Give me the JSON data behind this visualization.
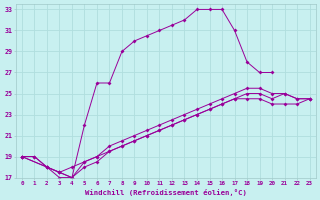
{
  "xlabel": "Windchill (Refroidissement éolien,°C)",
  "xlim_min": -0.5,
  "xlim_max": 23.5,
  "ylim_min": 17,
  "ylim_max": 33.5,
  "xticks": [
    0,
    1,
    2,
    3,
    4,
    5,
    6,
    7,
    8,
    9,
    10,
    11,
    12,
    13,
    14,
    15,
    16,
    17,
    18,
    19,
    20,
    21,
    22,
    23
  ],
  "yticks": [
    17,
    19,
    21,
    23,
    25,
    27,
    29,
    31,
    33
  ],
  "bg_color": "#c8f0f0",
  "line_color": "#990099",
  "grid_color": "#b0dede",
  "line1_x": [
    0,
    1,
    2,
    3,
    4,
    5,
    6,
    7,
    8,
    9,
    10,
    11,
    12,
    13,
    14,
    15,
    16,
    17,
    18,
    19,
    20
  ],
  "line1_y": [
    19,
    19,
    18,
    17,
    17,
    22,
    26,
    26,
    29,
    30,
    30.5,
    31,
    31.5,
    32,
    33,
    33,
    33,
    31,
    28,
    27,
    27
  ],
  "line2_x": [
    0,
    1,
    2,
    3,
    4,
    5,
    6,
    7,
    8,
    9,
    10,
    11,
    12,
    13,
    14,
    15,
    16,
    17,
    18,
    19,
    20,
    21,
    22,
    23
  ],
  "line2_y": [
    19,
    19,
    18,
    17.5,
    18,
    18.5,
    19,
    19.5,
    20,
    20.5,
    21,
    21.5,
    22,
    22.5,
    23,
    23.5,
    24,
    24.5,
    24.5,
    24.5,
    24,
    24,
    24,
    24.5
  ],
  "line3_x": [
    0,
    2,
    3,
    4,
    5,
    6,
    7,
    8,
    9,
    10,
    11,
    12,
    13,
    14,
    15,
    16,
    17,
    18,
    19,
    20,
    21,
    22,
    23
  ],
  "line3_y": [
    19,
    18,
    17.5,
    17,
    18,
    18.5,
    19.5,
    20,
    20.5,
    21,
    21.5,
    22,
    22.5,
    23,
    23.5,
    24,
    24.5,
    25,
    25,
    24.5,
    25,
    24.5,
    24.5
  ],
  "line4_x": [
    0,
    2,
    3,
    4,
    5,
    6,
    7,
    8,
    9,
    10,
    11,
    12,
    13,
    14,
    15,
    16,
    17,
    18,
    19,
    20,
    21,
    22,
    23
  ],
  "line4_y": [
    19,
    18,
    17.5,
    17,
    18.5,
    19,
    20,
    20.5,
    21,
    21.5,
    22,
    22.5,
    23,
    23.5,
    24,
    24.5,
    25,
    25.5,
    25.5,
    25,
    25,
    24.5,
    24.5
  ]
}
